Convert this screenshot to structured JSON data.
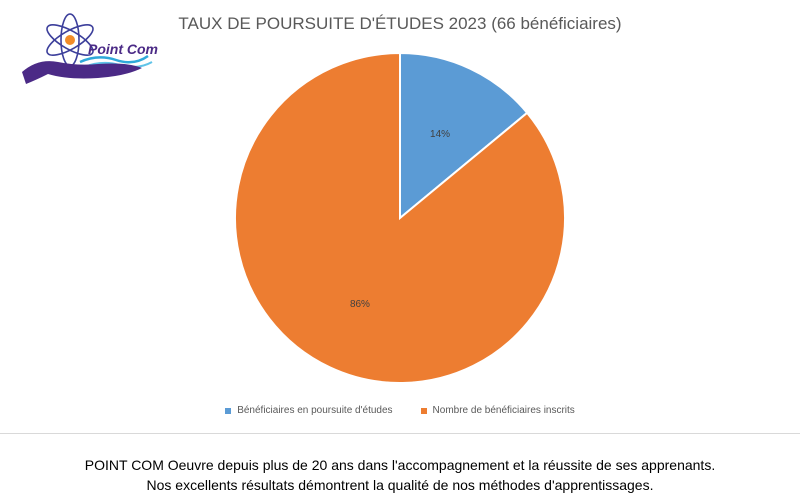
{
  "brand": {
    "logo_text": "Point Com"
  },
  "chart_data": {
    "type": "pie",
    "title": "TAUX DE POURSUITE D'ÉTUDES 2023 (66 bénéficiaires)",
    "categories": [
      "Bénéficiaires en poursuite d'études",
      "Nombre de bénéficiaires inscrits"
    ],
    "values": [
      14,
      86
    ],
    "data_labels": [
      "14%",
      "86%"
    ],
    "colors": [
      "#5B9BD5",
      "#ED7D31"
    ],
    "legend_position": "bottom"
  },
  "footer": {
    "line1": "POINT COM Oeuvre depuis plus de 20 ans dans l'accompagnement et la réussite de ses apprenants.",
    "line2": "Nos excellents résultats démontrent la qualité de nos méthodes d'apprentissages."
  }
}
